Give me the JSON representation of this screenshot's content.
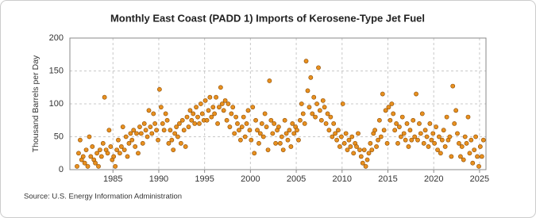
{
  "chart_data": {
    "type": "scatter",
    "title": "Monthly East Coast (PADD 1) Imports of Kerosene-Type Jet Fuel",
    "y_label": "Thousand Barrels per Day",
    "source": "Source: U.S. Energy Information Administration",
    "color": "#e8901f",
    "grid": true,
    "xlim": [
      1980.3,
      2025.7
    ],
    "xticks": [
      1985,
      1990,
      1995,
      2000,
      2005,
      2010,
      2015,
      2020,
      2025
    ],
    "ylim": [
      0,
      200
    ],
    "yticks": [
      0,
      50,
      100,
      150,
      200
    ],
    "x": [
      1981.08,
      1981.25,
      1981.42,
      1981.58,
      1981.75,
      1981.92,
      1982.08,
      1982.25,
      1982.42,
      1982.58,
      1982.75,
      1982.92,
      1983.08,
      1983.25,
      1983.42,
      1983.58,
      1983.75,
      1983.92,
      1984.08,
      1984.25,
      1984.42,
      1984.58,
      1984.75,
      1984.92,
      1985.08,
      1985.25,
      1985.42,
      1985.58,
      1985.75,
      1985.92,
      1986.08,
      1986.25,
      1986.42,
      1986.58,
      1986.75,
      1986.92,
      1987.08,
      1987.25,
      1987.42,
      1987.58,
      1987.75,
      1987.92,
      1988.08,
      1988.25,
      1988.42,
      1988.58,
      1988.75,
      1988.92,
      1989.08,
      1989.25,
      1989.42,
      1989.58,
      1989.75,
      1989.92,
      1990.08,
      1990.25,
      1990.42,
      1990.58,
      1990.75,
      1990.92,
      1991.08,
      1991.25,
      1991.42,
      1991.58,
      1991.75,
      1991.92,
      1992.08,
      1992.25,
      1992.42,
      1992.58,
      1992.75,
      1992.92,
      1993.08,
      1993.25,
      1993.42,
      1993.58,
      1993.75,
      1993.92,
      1994.08,
      1994.25,
      1994.42,
      1994.58,
      1994.75,
      1994.92,
      1995.08,
      1995.25,
      1995.42,
      1995.58,
      1995.75,
      1995.92,
      1996.08,
      1996.25,
      1996.42,
      1996.58,
      1996.75,
      1996.92,
      1997.08,
      1997.25,
      1997.42,
      1997.58,
      1997.75,
      1997.92,
      1998.08,
      1998.25,
      1998.42,
      1998.58,
      1998.75,
      1998.92,
      1999.08,
      1999.25,
      1999.42,
      1999.58,
      1999.75,
      1999.92,
      2000.08,
      2000.25,
      2000.42,
      2000.58,
      2000.75,
      2000.92,
      2001.08,
      2001.25,
      2001.42,
      2001.58,
      2001.75,
      2001.92,
      2002.08,
      2002.25,
      2002.42,
      2002.58,
      2002.75,
      2002.92,
      2003.08,
      2003.25,
      2003.42,
      2003.58,
      2003.75,
      2003.92,
      2004.08,
      2004.25,
      2004.42,
      2004.58,
      2004.75,
      2004.92,
      2005.08,
      2005.25,
      2005.42,
      2005.58,
      2005.75,
      2005.92,
      2006.08,
      2006.25,
      2006.42,
      2006.58,
      2006.75,
      2006.92,
      2007.08,
      2007.25,
      2007.42,
      2007.58,
      2007.75,
      2007.92,
      2008.08,
      2008.25,
      2008.42,
      2008.58,
      2008.75,
      2008.92,
      2009.08,
      2009.25,
      2009.42,
      2009.58,
      2009.75,
      2009.92,
      2010.08,
      2010.25,
      2010.42,
      2010.58,
      2010.75,
      2010.92,
      2011.08,
      2011.25,
      2011.42,
      2011.58,
      2011.75,
      2011.92,
      2012.08,
      2012.25,
      2012.42,
      2012.58,
      2012.75,
      2012.92,
      2013.08,
      2013.25,
      2013.42,
      2013.58,
      2013.75,
      2013.92,
      2014.08,
      2014.25,
      2014.42,
      2014.58,
      2014.75,
      2014.92,
      2015.08,
      2015.25,
      2015.42,
      2015.58,
      2015.75,
      2015.92,
      2016.08,
      2016.25,
      2016.42,
      2016.58,
      2016.75,
      2016.92,
      2017.08,
      2017.25,
      2017.42,
      2017.58,
      2017.75,
      2017.92,
      2018.08,
      2018.25,
      2018.42,
      2018.58,
      2018.75,
      2018.92,
      2019.08,
      2019.25,
      2019.42,
      2019.58,
      2019.75,
      2019.92,
      2020.08,
      2020.25,
      2020.42,
      2020.58,
      2020.75,
      2020.92,
      2021.08,
      2021.25,
      2021.42,
      2021.58,
      2021.75,
      2021.92,
      2022.08,
      2022.25,
      2022.42,
      2022.58,
      2022.75,
      2022.92,
      2023.08,
      2023.25,
      2023.42,
      2023.58,
      2023.75,
      2023.92,
      2024.08,
      2024.25,
      2024.42,
      2024.58,
      2024.75,
      2024.92,
      2025.08,
      2025.25,
      2025.42
    ],
    "values": [
      5,
      25,
      45,
      15,
      20,
      10,
      30,
      5,
      50,
      20,
      35,
      15,
      10,
      25,
      5,
      30,
      20,
      40,
      110,
      30,
      25,
      60,
      35,
      15,
      20,
      5,
      30,
      45,
      25,
      35,
      65,
      30,
      50,
      20,
      40,
      55,
      45,
      60,
      35,
      55,
      25,
      65,
      55,
      40,
      70,
      60,
      50,
      90,
      65,
      55,
      85,
      70,
      60,
      45,
      122,
      95,
      70,
      60,
      85,
      75,
      40,
      60,
      45,
      30,
      55,
      65,
      50,
      70,
      40,
      75,
      60,
      35,
      80,
      65,
      90,
      75,
      85,
      70,
      95,
      80,
      70,
      100,
      85,
      75,
      105,
      75,
      90,
      110,
      80,
      95,
      85,
      110,
      70,
      95,
      125,
      100,
      90,
      105,
      75,
      100,
      65,
      85,
      95,
      55,
      80,
      70,
      60,
      45,
      65,
      80,
      50,
      70,
      90,
      60,
      45,
      95,
      25,
      75,
      60,
      40,
      55,
      70,
      50,
      85,
      65,
      30,
      135,
      75,
      55,
      70,
      40,
      60,
      65,
      40,
      50,
      30,
      75,
      55,
      45,
      60,
      35,
      70,
      55,
      65,
      60,
      45,
      75,
      100,
      85,
      70,
      165,
      120,
      95,
      140,
      85,
      110,
      80,
      100,
      155,
      90,
      75,
      105,
      95,
      70,
      85,
      60,
      80,
      50,
      70,
      55,
      45,
      60,
      35,
      50,
      100,
      40,
      55,
      30,
      45,
      35,
      50,
      25,
      40,
      35,
      55,
      30,
      20,
      10,
      30,
      5,
      15,
      25,
      40,
      30,
      55,
      60,
      35,
      45,
      75,
      50,
      115,
      60,
      90,
      40,
      95,
      75,
      100,
      85,
      60,
      70,
      40,
      65,
      50,
      80,
      55,
      45,
      70,
      35,
      60,
      45,
      75,
      50,
      115,
      45,
      70,
      55,
      85,
      40,
      60,
      50,
      35,
      70,
      45,
      55,
      40,
      65,
      30,
      50,
      25,
      45,
      60,
      35,
      80,
      45,
      50,
      20,
      127,
      70,
      90,
      55,
      40,
      20,
      35,
      15,
      50,
      40,
      80,
      25,
      45,
      10,
      30,
      50,
      20,
      5,
      35,
      20,
      45
    ]
  }
}
